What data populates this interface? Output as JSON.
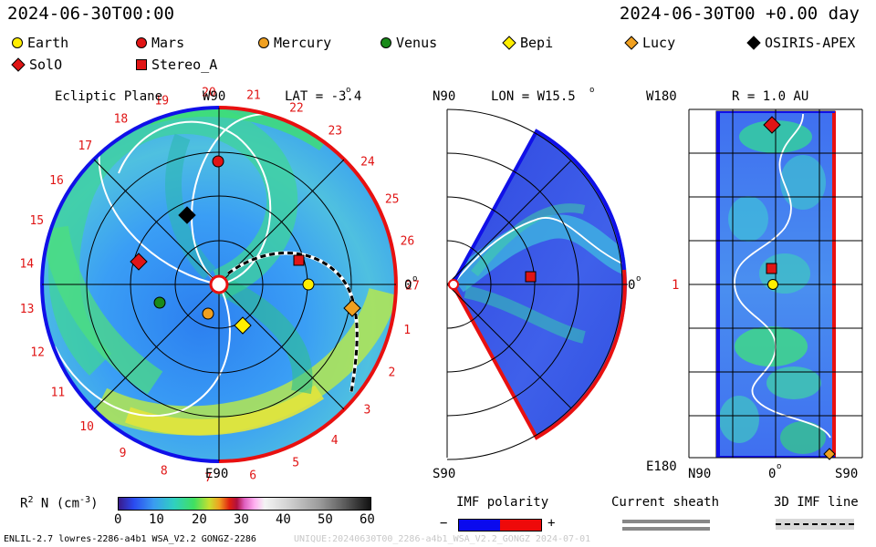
{
  "header": {
    "left_timestamp": "2024-06-30T00:00",
    "right_timestamp": "2024-06-30T00 +0.00 day"
  },
  "legend": [
    {
      "label": "Earth",
      "color": "#ffee00",
      "shape": "circle"
    },
    {
      "label": "Mars",
      "color": "#e01515",
      "shape": "circle"
    },
    {
      "label": "Mercury",
      "color": "#f0a020",
      "shape": "circle"
    },
    {
      "label": "Venus",
      "color": "#1a8a1a",
      "shape": "circle"
    },
    {
      "label": "Bepi",
      "color": "#ffee00",
      "shape": "diamond"
    },
    {
      "label": "Lucy",
      "color": "#f0a020",
      "shape": "diamond"
    },
    {
      "label": "OSIRIS-APEX",
      "color": "#000000",
      "shape": "diamond"
    },
    {
      "label": "SolO",
      "color": "#e01515",
      "shape": "diamond"
    },
    {
      "label": "Stereo_A",
      "color": "#e01515",
      "shape": "square"
    }
  ],
  "ecliptic_panel": {
    "title": "Ecliptic Plane",
    "top_label": "W90",
    "bottom_label": "E90",
    "right_label": "0",
    "lat_label": "LAT = -3.4",
    "degree_mark": "o",
    "carrington_numbers": [
      "20",
      "21",
      "22",
      "23",
      "24",
      "25",
      "26",
      "27",
      "1",
      "2",
      "3",
      "4",
      "5",
      "6",
      "7",
      "8",
      "9",
      "10",
      "11",
      "12",
      "13",
      "14",
      "15",
      "16",
      "17",
      "18",
      "19"
    ]
  },
  "meridional_panel": {
    "top_left_label": "N90",
    "bottom_left_label": "S90",
    "lon_label": "LON = W15.5",
    "right_label": "0",
    "degree_mark": "o"
  },
  "map_panel": {
    "title": "R = 1.0 AU",
    "top_left_label": "W180",
    "bottom_left_label": "E180",
    "mid_left_label": "1",
    "bottom_labels": [
      "N90",
      "0",
      "S90"
    ],
    "degree_mark": "o"
  },
  "colorbar": {
    "label": "R",
    "label_sup": "2",
    "label_rest": " N (cm",
    "label_exp": "-3",
    "label_end": ")",
    "ticks": [
      "0",
      "10",
      "20",
      "30",
      "40",
      "50",
      "60"
    ]
  },
  "imf_polarity": {
    "title": "IMF polarity",
    "minus": "−",
    "plus": "+",
    "neg_color": "#0a0aee",
    "pos_color": "#ee0a0a"
  },
  "current_sheath": {
    "title": "Current sheath"
  },
  "imf_line": {
    "title": "3D IMF line"
  },
  "footer": {
    "left": "ENLIL-2.7 lowres-2286-a4b1 WSA_V2.2 GONGZ-2286",
    "right": "UNIQUE:20240630T00_2286-a4b1_WSA_V2.2_GONGZ  2024-07-01"
  }
}
